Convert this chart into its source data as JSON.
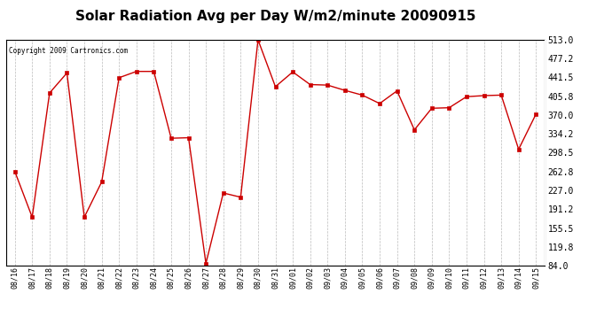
{
  "title": "Solar Radiation Avg per Day W/m2/minute 20090915",
  "copyright": "Copyright 2009 Cartronics.com",
  "dates": [
    "08/16",
    "08/17",
    "08/18",
    "08/19",
    "08/20",
    "08/21",
    "08/22",
    "08/23",
    "08/24",
    "08/25",
    "08/26",
    "08/27",
    "08/28",
    "08/29",
    "08/30",
    "08/31",
    "09/01",
    "09/02",
    "09/03",
    "09/04",
    "09/05",
    "09/06",
    "09/07",
    "09/08",
    "09/09",
    "09/10",
    "09/11",
    "09/12",
    "09/13",
    "09/14",
    "09/15"
  ],
  "values": [
    263,
    176,
    412,
    450,
    176,
    243,
    441,
    453,
    453,
    326,
    327,
    88,
    222,
    214,
    513,
    424,
    452,
    428,
    427,
    417,
    408,
    392,
    416,
    342,
    383,
    384,
    405,
    407,
    408,
    305,
    372
  ],
  "yticks": [
    84.0,
    119.8,
    155.5,
    191.2,
    227.0,
    262.8,
    298.5,
    334.2,
    370.0,
    405.8,
    441.5,
    477.2,
    513.0
  ],
  "line_color": "#cc0000",
  "marker": "s",
  "marker_color": "#cc0000",
  "marker_size": 2.5,
  "bg_color": "#ffffff",
  "grid_color": "#bbbbbb",
  "title_fontsize": 11,
  "ylim": [
    84.0,
    513.0
  ]
}
